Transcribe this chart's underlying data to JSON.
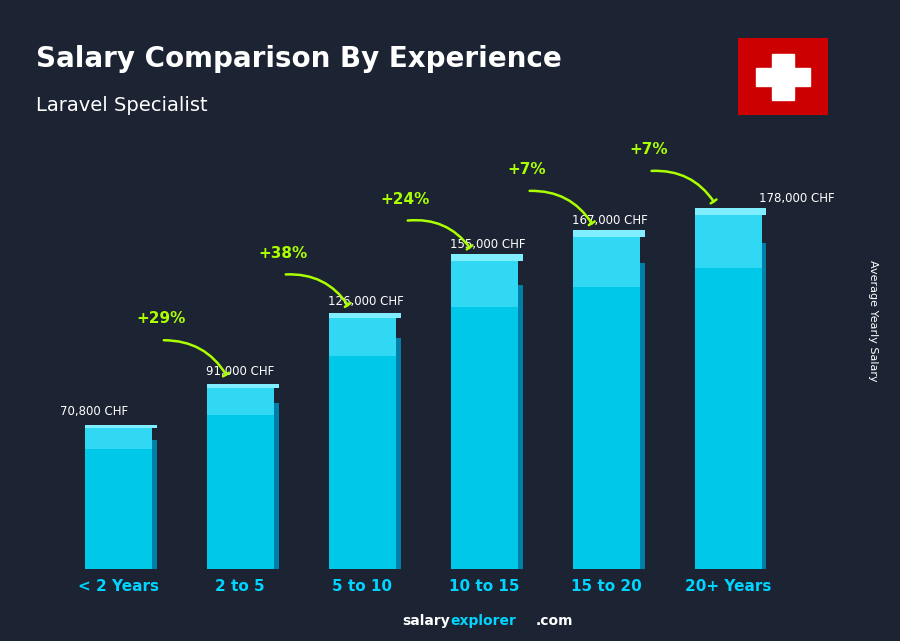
{
  "title": "Salary Comparison By Experience",
  "subtitle": "Laravel Specialist",
  "categories": [
    "< 2 Years",
    "2 to 5",
    "5 to 10",
    "10 to 15",
    "15 to 20",
    "20+ Years"
  ],
  "values": [
    70800,
    91000,
    126000,
    155000,
    167000,
    178000
  ],
  "value_labels": [
    "70,800 CHF",
    "91,000 CHF",
    "126,000 CHF",
    "155,000 CHF",
    "167,000 CHF",
    "178,000 CHF"
  ],
  "pct_labels": [
    "+29%",
    "+38%",
    "+24%",
    "+7%",
    "+7%"
  ],
  "bar_color_top": "#00d4ff",
  "bar_color_bottom": "#007ab8",
  "bar_color_face": "#00bcd4",
  "background_color": "#1a1a2e",
  "title_color": "#ffffff",
  "subtitle_color": "#ffffff",
  "value_label_color": "#ffffff",
  "pct_color": "#aaff00",
  "xlabel_color": "#00d4ff",
  "ylabel_text": "Average Yearly Salary",
  "footer_text": "salaryexplorer.com",
  "footer_salary": "salary",
  "footer_explorer": "explorer",
  "ylim": [
    0,
    210000
  ],
  "flag_bg": "#cc0000",
  "flag_cross": "#ffffff"
}
